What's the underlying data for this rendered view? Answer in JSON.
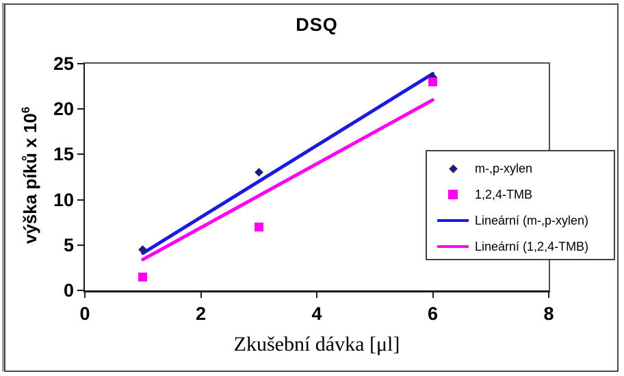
{
  "chart_data": {
    "type": "scatter",
    "title": "DSQ",
    "xlabel": "Zkušební dávka [μl]",
    "ylabel": "výška píků x 10⁶",
    "ylabel_base": "výška píků x 10",
    "ylabel_exponent": "6",
    "xlim": [
      0,
      8
    ],
    "ylim": [
      0,
      25
    ],
    "xticks": [
      0,
      2,
      4,
      6,
      8
    ],
    "yticks": [
      0,
      5,
      10,
      15,
      20,
      25
    ],
    "grid": false,
    "legend_position": "middle-right-overlapping-plot",
    "series": [
      {
        "name": "m-,p-xylen",
        "marker": "diamond",
        "color": "#1e1e78",
        "x": [
          1,
          3,
          6
        ],
        "y": [
          4.5,
          13,
          23.5
        ]
      },
      {
        "name": "1,2,4-TMB",
        "marker": "square",
        "color": "#ff00f0",
        "x": [
          1,
          3,
          6
        ],
        "y": [
          1.5,
          7,
          23
        ]
      }
    ],
    "trendlines": [
      {
        "name": "Lineární (m-,p-xylen)",
        "color": "#1a1ae0",
        "x1": 1,
        "y1": 4.1,
        "x2": 6,
        "y2": 23.9
      },
      {
        "name": "Lineární (1,2,4-TMB)",
        "color": "#ff00f0",
        "x1": 1,
        "y1": 3.4,
        "x2": 6,
        "y2": 21.0
      }
    ]
  },
  "legend": {
    "items": [
      {
        "label": "m-,p-xylen",
        "marker": "diamond",
        "color": "#1e1e78"
      },
      {
        "label": "1,2,4-TMB",
        "marker": "square",
        "color": "#ff00f0"
      },
      {
        "label": "Lineární (m-,p-xylen)",
        "marker": "line",
        "color": "#1a1ae0"
      },
      {
        "label": "Lineární (1,2,4-TMB)",
        "marker": "line",
        "color": "#ff00f0"
      }
    ]
  }
}
